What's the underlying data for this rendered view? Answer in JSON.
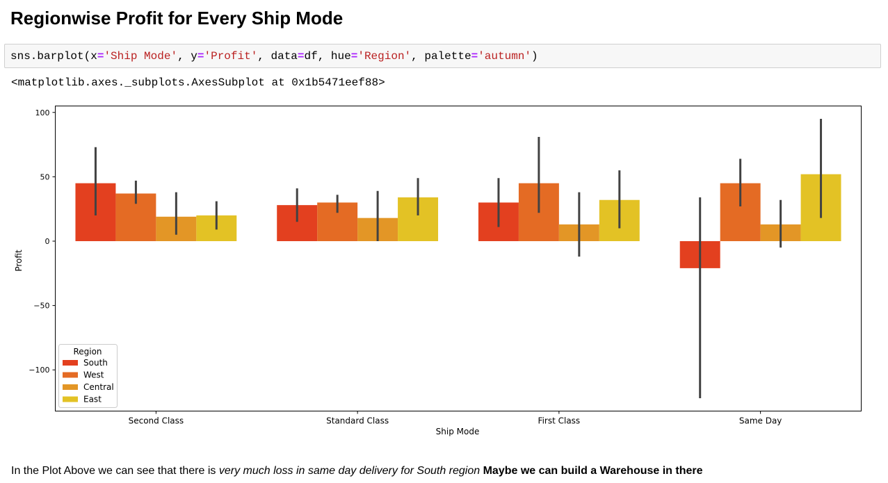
{
  "heading": "Regionwise Profit for Every Ship Mode",
  "code": {
    "tokens": [
      {
        "t": "sns.barplot(x",
        "c": "tok-name"
      },
      {
        "t": "=",
        "c": "tok-op"
      },
      {
        "t": "'Ship Mode'",
        "c": "tok-str"
      },
      {
        "t": ", y",
        "c": "tok-name"
      },
      {
        "t": "=",
        "c": "tok-op"
      },
      {
        "t": "'Profit'",
        "c": "tok-str"
      },
      {
        "t": ", data",
        "c": "tok-name"
      },
      {
        "t": "=",
        "c": "tok-op"
      },
      {
        "t": "df, hue",
        "c": "tok-name"
      },
      {
        "t": "=",
        "c": "tok-op"
      },
      {
        "t": "'Region'",
        "c": "tok-str"
      },
      {
        "t": ", palette",
        "c": "tok-name"
      },
      {
        "t": "=",
        "c": "tok-op"
      },
      {
        "t": "'autumn'",
        "c": "tok-str"
      },
      {
        "t": ")",
        "c": "tok-p"
      }
    ]
  },
  "output_text": "<matplotlib.axes._subplots.AxesSubplot at 0x1b5471eef88>",
  "chart_data": {
    "type": "bar",
    "categories": [
      "Second Class",
      "Standard Class",
      "First Class",
      "Same Day"
    ],
    "xlabel": "Ship Mode",
    "ylabel": "Profit",
    "ylim": [
      -132,
      105
    ],
    "yticks": [
      100,
      50,
      0,
      -50,
      -100
    ],
    "ytick_labels": [
      "100",
      "50",
      "0",
      "−50",
      "−100"
    ],
    "legend": {
      "title": "Region",
      "placement": "lower-left"
    },
    "series": [
      {
        "name": "South",
        "color": "#e3401f",
        "values": [
          45,
          28,
          30,
          -21
        ],
        "ci": [
          [
            20,
            73
          ],
          [
            15,
            41
          ],
          [
            11,
            49
          ],
          [
            -122,
            34
          ]
        ]
      },
      {
        "name": "West",
        "color": "#e46b24",
        "values": [
          37,
          30,
          45,
          45
        ],
        "ci": [
          [
            29,
            47
          ],
          [
            22,
            36
          ],
          [
            22,
            81
          ],
          [
            27,
            64
          ]
        ]
      },
      {
        "name": "Central",
        "color": "#e39626",
        "values": [
          19,
          18,
          13,
          13
        ],
        "ci": [
          [
            5,
            38
          ],
          [
            0,
            39
          ],
          [
            -12,
            38
          ],
          [
            -5,
            32
          ]
        ]
      },
      {
        "name": "East",
        "color": "#e3c225",
        "values": [
          20,
          34,
          32,
          52
        ],
        "ci": [
          [
            9,
            31
          ],
          [
            20,
            49
          ],
          [
            10,
            55
          ],
          [
            18,
            95
          ]
        ]
      }
    ],
    "errorbar_color": "#424242",
    "grid": false
  },
  "paragraph": {
    "plain": "In the Plot Above we can see that there is ",
    "italic": "very much loss in same day delivery for South region",
    "space": " ",
    "bold": "Maybe we can build a Warehouse in there"
  }
}
